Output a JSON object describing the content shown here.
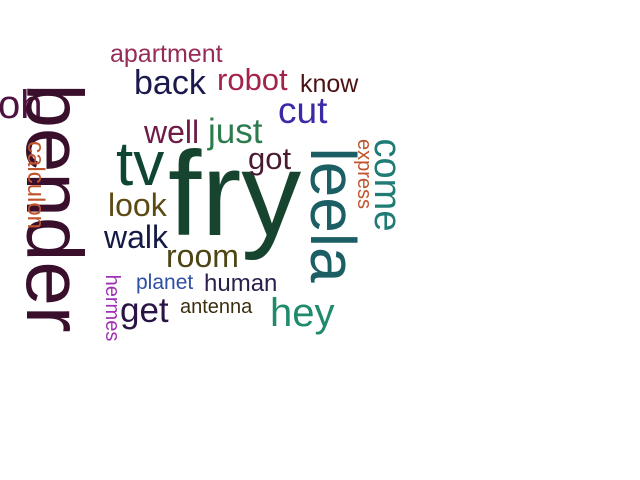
{
  "words": {
    "fry": {
      "text": "fry",
      "color": "#16442f"
    },
    "bender": {
      "text": "bender",
      "color": "#3a0f2c"
    },
    "leela": {
      "text": "leela",
      "color": "#1b5e63"
    },
    "tv": {
      "text": "tv",
      "color": "#0f4535"
    },
    "oh": {
      "text": "oh",
      "color": "#4d1240"
    },
    "cut": {
      "text": "cut",
      "color": "#3a2aa6"
    },
    "back": {
      "text": "back",
      "color": "#1b1a4e"
    },
    "robot": {
      "text": "robot",
      "color": "#a3234a"
    },
    "know": {
      "text": "know",
      "color": "#4a1212"
    },
    "apartment": {
      "text": "apartment",
      "color": "#962b57"
    },
    "just": {
      "text": "just",
      "color": "#2c7b4c"
    },
    "well": {
      "text": "well",
      "color": "#6e1b47"
    },
    "got": {
      "text": "got",
      "color": "#4a1a33"
    },
    "come": {
      "text": "come",
      "color": "#1f7b73"
    },
    "express": {
      "text": "express",
      "color": "#c0542c"
    },
    "calculon": {
      "text": "calculon",
      "color": "#c0542c"
    },
    "look": {
      "text": "look",
      "color": "#5c4a14"
    },
    "walk": {
      "text": "walk",
      "color": "#141a44"
    },
    "room": {
      "text": "room",
      "color": "#4e4514"
    },
    "hey": {
      "text": "hey",
      "color": "#1f8a6c"
    },
    "planet": {
      "text": "planet",
      "color": "#2d4fa6"
    },
    "human": {
      "text": "human",
      "color": "#2a1f4a"
    },
    "get": {
      "text": "get",
      "color": "#2a1446"
    },
    "antenna": {
      "text": "antenna",
      "color": "#3d2e10"
    },
    "hermes": {
      "text": "hermes",
      "color": "#a030b5"
    }
  }
}
